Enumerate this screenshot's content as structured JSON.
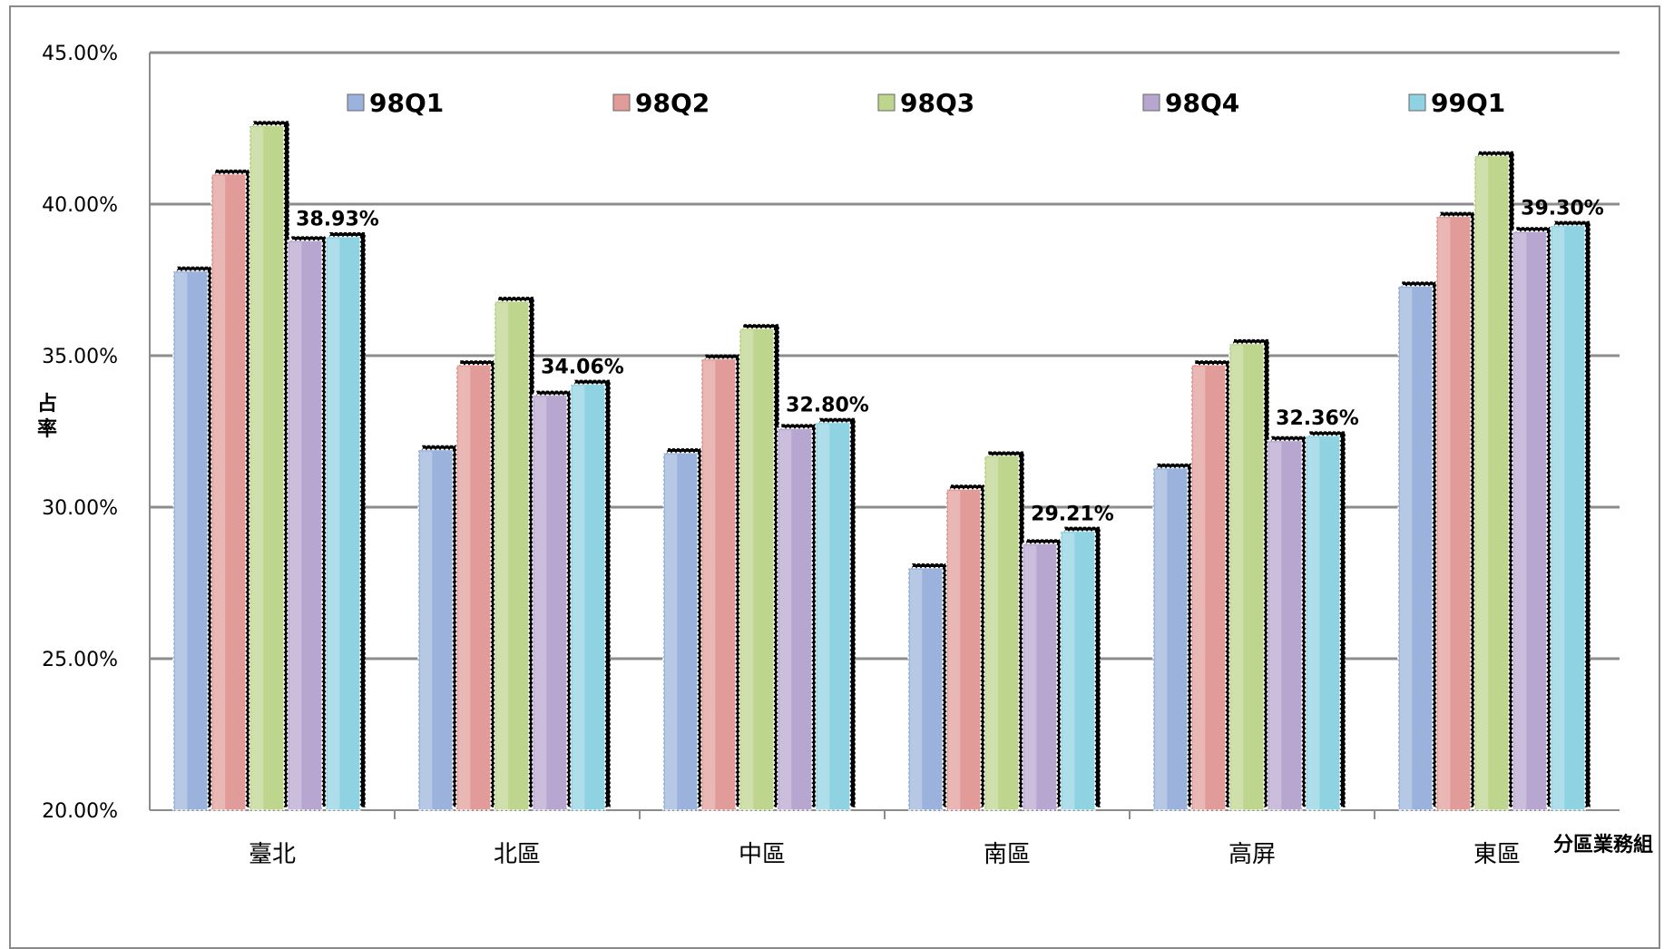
{
  "chart_data": {
    "type": "bar",
    "categories": [
      "臺北",
      "北區",
      "中區",
      "南區",
      "高屏",
      "東區"
    ],
    "series": [
      {
        "name": "98Q1",
        "values": [
          37.8,
          31.9,
          31.8,
          28.0,
          31.3,
          37.3
        ],
        "color": "#9bb3dc"
      },
      {
        "name": "98Q2",
        "values": [
          41.0,
          34.7,
          34.9,
          30.6,
          34.7,
          39.6
        ],
        "color": "#e19b98"
      },
      {
        "name": "98Q3",
        "values": [
          42.6,
          36.8,
          35.9,
          31.7,
          35.4,
          41.6
        ],
        "color": "#bed58d"
      },
      {
        "name": "98Q4",
        "values": [
          38.8,
          33.7,
          32.6,
          28.8,
          32.2,
          39.1
        ],
        "color": "#b7a6cf"
      },
      {
        "name": "99Q1",
        "values": [
          38.93,
          34.06,
          32.8,
          29.21,
          32.36,
          39.3
        ],
        "color": "#8fd2e2"
      }
    ],
    "data_labels": {
      "series": "99Q1",
      "texts": [
        "38.93%",
        "34.06%",
        "32.80%",
        "29.21%",
        "32.36%",
        "39.30%"
      ]
    },
    "ylim": [
      20,
      45
    ],
    "yticks": [
      "20.00%",
      "25.00%",
      "30.00%",
      "35.00%",
      "40.00%",
      "45.00%"
    ],
    "ytick_values": [
      20,
      25,
      30,
      35,
      40,
      45
    ],
    "ylabel_chars": [
      "占",
      "率"
    ],
    "xlabel": "分區業務組",
    "grid": true,
    "legend_position": "top"
  }
}
